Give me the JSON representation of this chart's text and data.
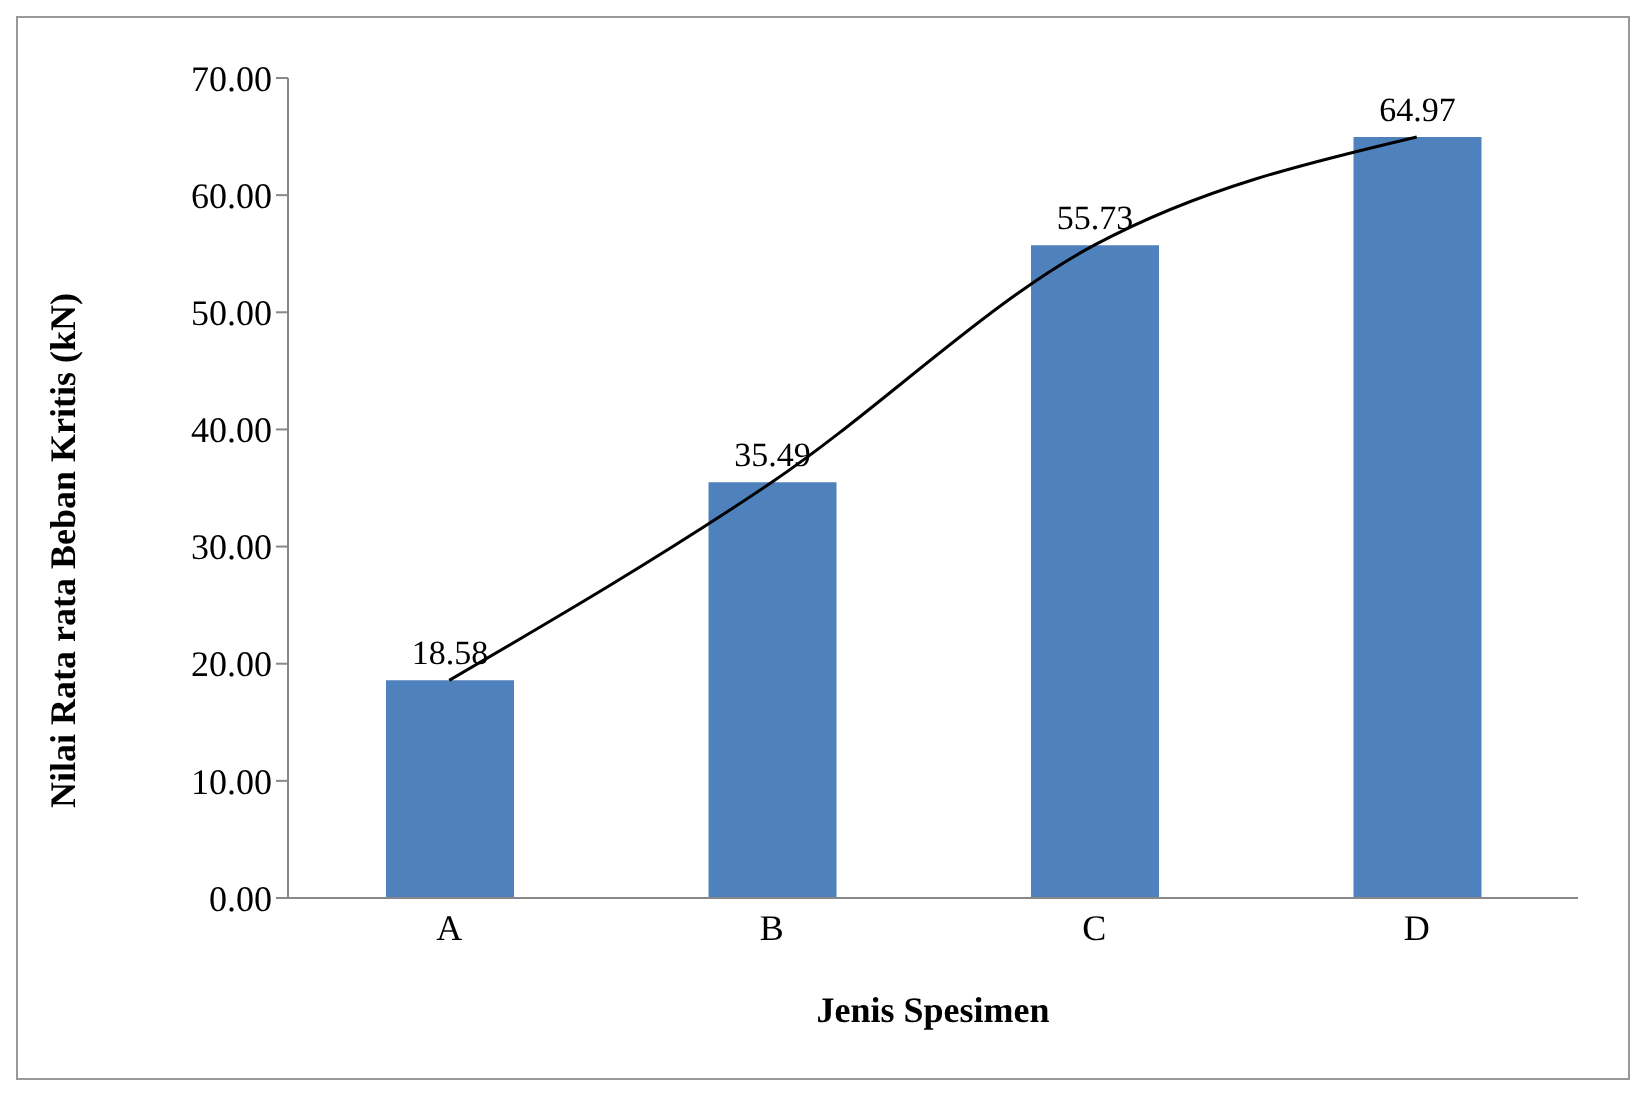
{
  "chart_data": {
    "type": "bar",
    "xlabel": "Jenis Spesimen",
    "ylabel": "Nilai Rata rata  Beban Kritis (kN)",
    "categories": [
      "A",
      "B",
      "C",
      "D"
    ],
    "series": [
      {
        "color": "#4f81bd",
        "values": [
          18.58,
          35.49,
          55.73,
          64.97
        ],
        "value_labels": [
          "18.58",
          "35.49",
          "55.73",
          "64.97"
        ]
      },
      {
        "type": "line",
        "color": "#000000",
        "values": [
          18.58,
          35.49,
          55.73,
          64.97
        ]
      }
    ],
    "ylim": [
      0,
      70
    ],
    "yticks": [
      {
        "value": 0,
        "label": "0.00"
      },
      {
        "value": 10,
        "label": "10.00"
      },
      {
        "value": 20,
        "label": "20.00"
      },
      {
        "value": 30,
        "label": "30.00"
      },
      {
        "value": 40,
        "label": "40.00"
      },
      {
        "value": 50,
        "label": "50.00"
      },
      {
        "value": 60,
        "label": "60.00"
      },
      {
        "value": 70,
        "label": "70.00"
      }
    ],
    "grid": false,
    "legend": false,
    "marker": "none",
    "line_style": "solid"
  }
}
